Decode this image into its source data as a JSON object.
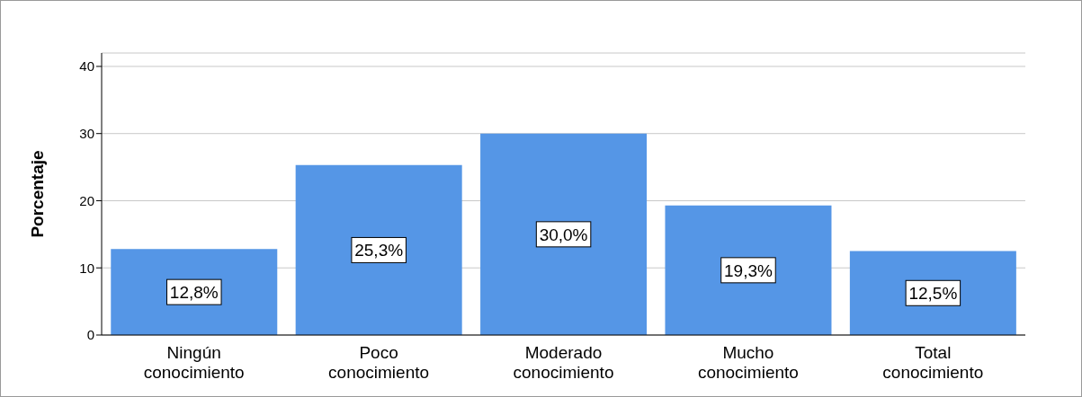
{
  "chart_data": {
    "type": "bar",
    "ylabel": "Porcentaje",
    "categories": [
      "Ningún conocimiento",
      "Poco conocimiento",
      "Moderado conocimiento",
      "Mucho conocimiento",
      "Total conocimiento"
    ],
    "values": [
      12.8,
      25.3,
      30.0,
      19.3,
      12.5
    ],
    "value_labels": [
      "12,8%",
      "25,3%",
      "30,0%",
      "19,3%",
      "12,5%"
    ],
    "color": "#5596e6",
    "ylim": [
      0,
      42
    ],
    "yticks": [
      0,
      10,
      20,
      30,
      40
    ],
    "grid": "y",
    "legend": false
  }
}
